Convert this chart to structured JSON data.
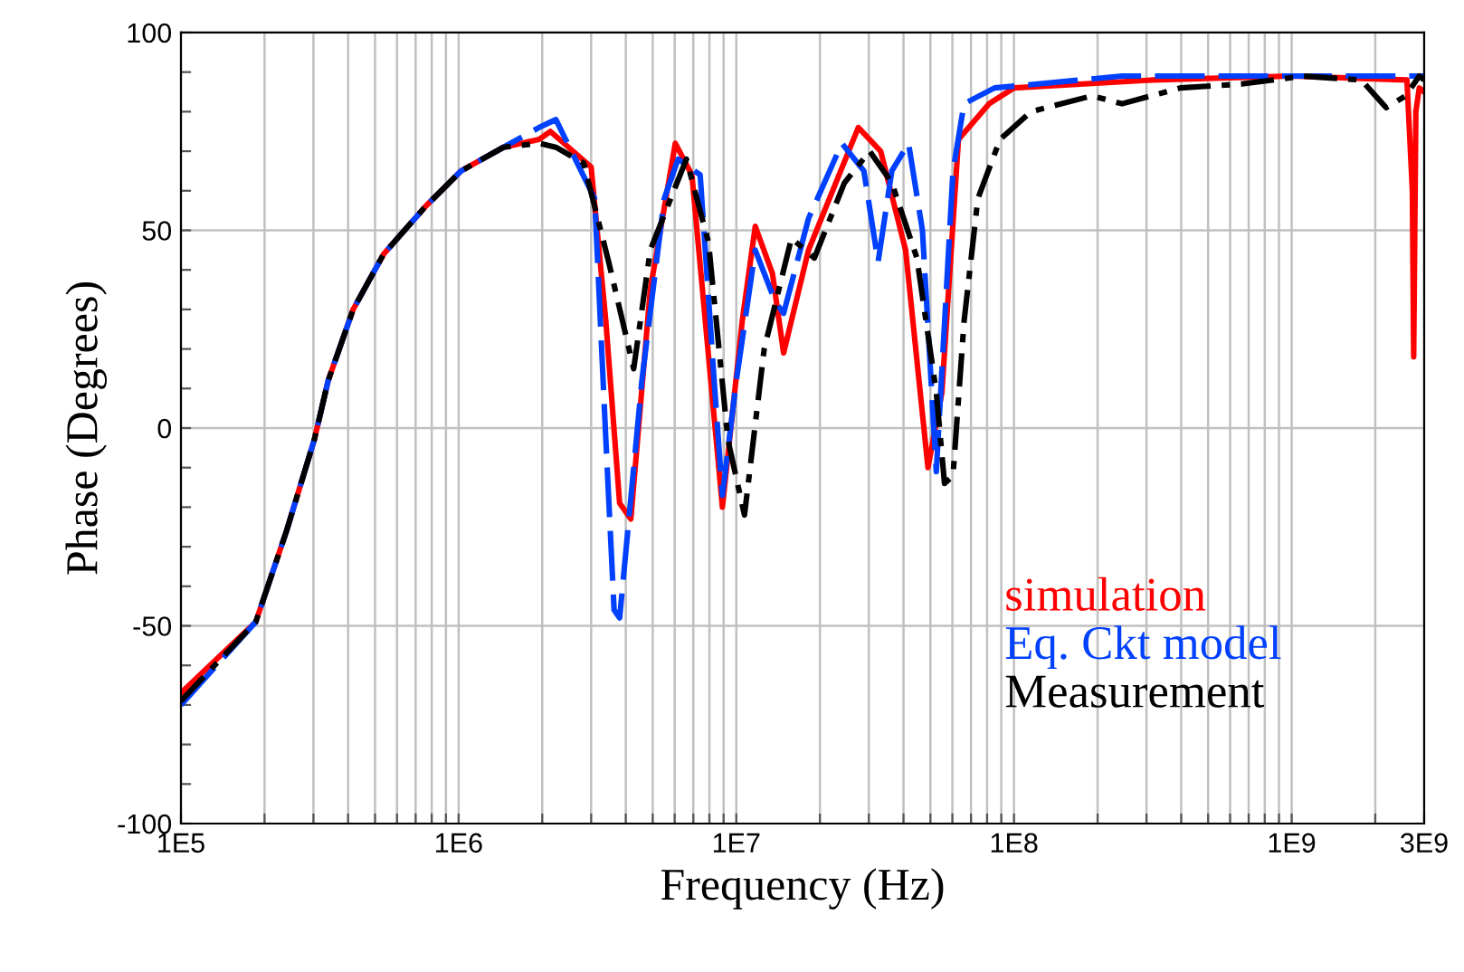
{
  "chart_data": {
    "type": "line",
    "xlabel": "Frequency (Hz)",
    "ylabel": "Phase (Degrees)",
    "log": "x",
    "xlim": [
      100000,
      3000000000
    ],
    "ylim": [
      -100,
      100
    ],
    "xticks": [
      {
        "value": 100000,
        "label": "1E5"
      },
      {
        "value": 200000,
        "label": null
      },
      {
        "value": 300000,
        "label": null
      },
      {
        "value": 400000,
        "label": null
      },
      {
        "value": 500000,
        "label": null
      },
      {
        "value": 600000,
        "label": null
      },
      {
        "value": 700000,
        "label": null
      },
      {
        "value": 800000,
        "label": null
      },
      {
        "value": 900000,
        "label": null
      },
      {
        "value": 1000000,
        "label": "1E6"
      },
      {
        "value": 2000000,
        "label": null
      },
      {
        "value": 3000000,
        "label": null
      },
      {
        "value": 4000000,
        "label": null
      },
      {
        "value": 5000000,
        "label": null
      },
      {
        "value": 6000000,
        "label": null
      },
      {
        "value": 7000000,
        "label": null
      },
      {
        "value": 8000000,
        "label": null
      },
      {
        "value": 9000000,
        "label": null
      },
      {
        "value": 10000000,
        "label": "1E7"
      },
      {
        "value": 20000000,
        "label": null
      },
      {
        "value": 30000000,
        "label": null
      },
      {
        "value": 40000000,
        "label": null
      },
      {
        "value": 50000000,
        "label": null
      },
      {
        "value": 60000000,
        "label": null
      },
      {
        "value": 70000000,
        "label": null
      },
      {
        "value": 80000000,
        "label": null
      },
      {
        "value": 90000000,
        "label": null
      },
      {
        "value": 100000000,
        "label": "1E8"
      },
      {
        "value": 200000000,
        "label": null
      },
      {
        "value": 300000000,
        "label": null
      },
      {
        "value": 400000000,
        "label": null
      },
      {
        "value": 500000000,
        "label": null
      },
      {
        "value": 600000000,
        "label": null
      },
      {
        "value": 700000000,
        "label": null
      },
      {
        "value": 800000000,
        "label": null
      },
      {
        "value": 900000000,
        "label": null
      },
      {
        "value": 1000000000,
        "label": "1E9"
      },
      {
        "value": 2000000000,
        "label": null
      },
      {
        "value": 3000000000,
        "label": "3E9"
      }
    ],
    "yticks": [
      -100,
      {
        "value": -90,
        "label": null
      },
      {
        "value": -80,
        "label": null
      },
      {
        "value": -70,
        "label": null
      },
      {
        "value": -60,
        "label": null
      },
      -50,
      {
        "value": -40,
        "label": null
      },
      {
        "value": -30,
        "label": null
      },
      {
        "value": -20,
        "label": null
      },
      {
        "value": -10,
        "label": null
      },
      0,
      {
        "value": 10,
        "label": null
      },
      {
        "value": 20,
        "label": null
      },
      {
        "value": 30,
        "label": null
      },
      {
        "value": 40,
        "label": null
      },
      50,
      {
        "value": 60,
        "label": null
      },
      {
        "value": 70,
        "label": null
      },
      {
        "value": 80,
        "label": null
      },
      {
        "value": 90,
        "label": null
      },
      100
    ],
    "grid": true,
    "legend": "bottom right",
    "marker": "none",
    "series": [
      {
        "name": "simulation",
        "color": "#ff0000",
        "line_style": "solid",
        "x": [
          100000,
          186000,
          240000,
          302000,
          339000,
          417000,
          537000,
          759000,
          1020000,
          1450000,
          1950000,
          2140000,
          3000000,
          3390000,
          3800000,
          4170000,
          4900000,
          6030000,
          6920000,
          8910000,
          10500000,
          11700000,
          13500000,
          14800000,
          18200000,
          27500000,
          33100000,
          40700000,
          49000000,
          55000000,
          63100000,
          81300000,
          100000000,
          316000000,
          1000000000,
          2600000000,
          2720000000,
          2750000000,
          2800000000,
          2880000000,
          3000000000
        ],
        "values": [
          -67,
          -49,
          -26,
          -3,
          12,
          30,
          44,
          56,
          65,
          71,
          73,
          75,
          66,
          27,
          -19,
          -23,
          35,
          72,
          64,
          -20,
          27,
          51,
          39,
          19,
          45,
          76,
          70,
          45,
          -10,
          9,
          73,
          82,
          86,
          88,
          89,
          88,
          60,
          18,
          80,
          86,
          85
        ]
      },
      {
        "name": "Eq. Ckt model",
        "color": "#0040ff",
        "line_style": "dashed",
        "x": [
          100000,
          186000,
          240000,
          302000,
          339000,
          417000,
          537000,
          759000,
          1020000,
          1450000,
          1950000,
          2240000,
          3090000,
          3390000,
          3630000,
          3800000,
          4570000,
          5500000,
          6170000,
          7410000,
          8320000,
          8910000,
          10000000,
          11700000,
          13800000,
          14800000,
          18200000,
          24000000,
          28800000,
          32400000,
          36300000,
          41700000,
          46800000,
          52500000,
          60300000,
          66100000,
          85100000,
          245000000,
          2690000000,
          3000000000
        ],
        "values": [
          -70,
          -49,
          -26,
          -3,
          12,
          30,
          44,
          56,
          65,
          71,
          76,
          78,
          58,
          -3,
          -46,
          -48,
          12,
          58,
          68,
          64,
          12,
          -17,
          12,
          45,
          32,
          29,
          53,
          72,
          65,
          42,
          65,
          72,
          50,
          -11,
          65,
          82,
          86,
          89,
          89,
          89
        ]
      },
      {
        "name": "Measurement",
        "color": "#000000",
        "line_style": "dashdot",
        "x": [
          100000,
          186000,
          240000,
          302000,
          339000,
          417000,
          537000,
          759000,
          1020000,
          1450000,
          1950000,
          2240000,
          2820000,
          3470000,
          4270000,
          4900000,
          6610000,
          7940000,
          9330000,
          10700000,
          12600000,
          15800000,
          19100000,
          24500000,
          30200000,
          36300000,
          44700000,
          52500000,
          56200000,
          60300000,
          66100000,
          74100000,
          89100000,
          115000000,
          191000000,
          245000000,
          398000000,
          661000000,
          1100000000,
          1780000000,
          2190000000,
          2570000000,
          2880000000,
          3000000000
        ],
        "values": [
          -69,
          -49,
          -26,
          -3,
          12,
          30,
          44,
          56,
          65,
          71,
          72,
          71,
          67,
          42,
          15,
          45,
          68,
          47,
          -3,
          -22,
          20,
          48,
          43,
          62,
          70,
          62,
          43,
          9,
          -14,
          -12,
          27,
          58,
          73,
          80,
          84,
          82,
          86,
          87,
          89,
          88,
          81,
          84,
          89,
          88
        ]
      }
    ]
  }
}
